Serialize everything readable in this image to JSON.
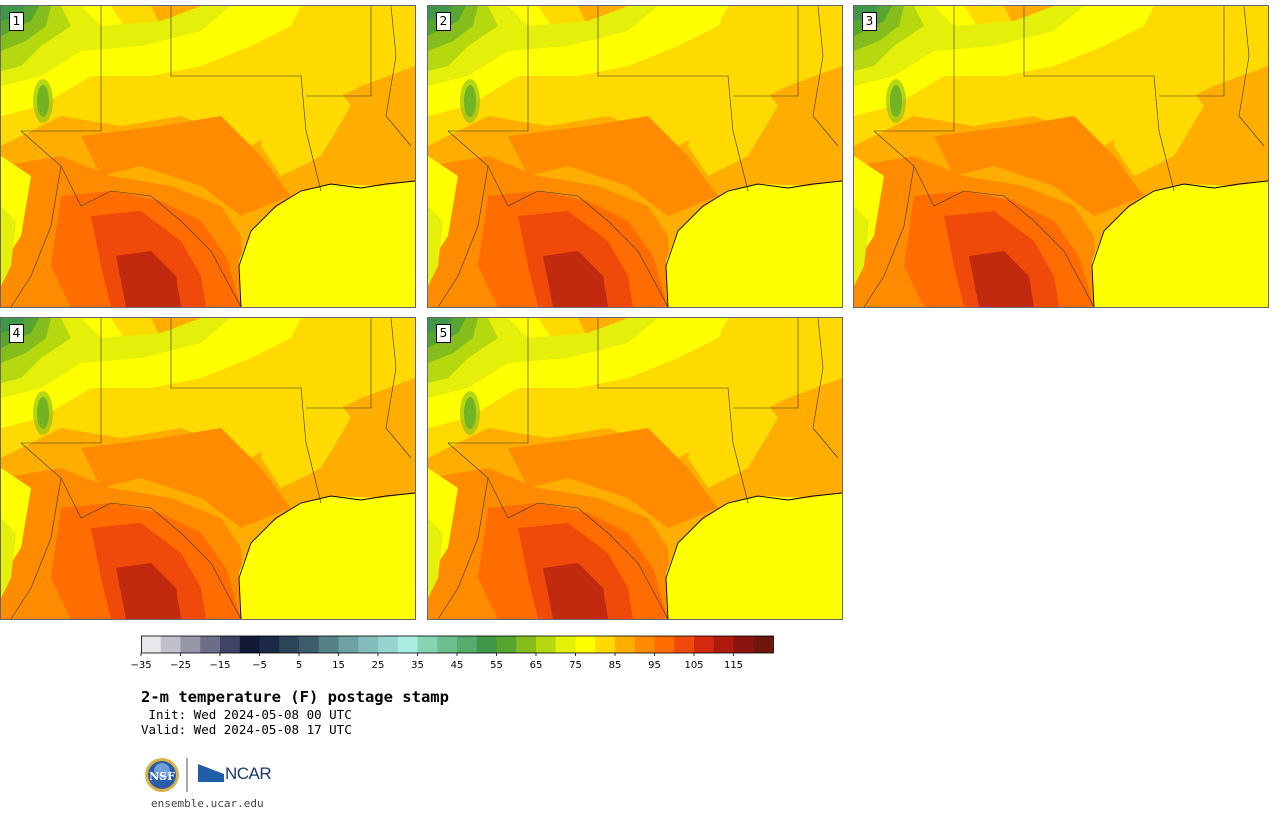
{
  "figure": {
    "title": "2-m temperature (F) postage stamp",
    "init": " Init: Wed 2024-05-08 00 UTC",
    "valid": "Valid: Wed 2024-05-08 17 UTC",
    "url": "ensemble.ucar.edu",
    "logos": {
      "nsf": "NSF",
      "ncar": "NCAR"
    }
  },
  "panels": [
    {
      "number": "1"
    },
    {
      "number": "2"
    },
    {
      "number": "3"
    },
    {
      "number": "4"
    },
    {
      "number": "5"
    }
  ],
  "colorbar": {
    "tick_labels": [
      "−35",
      "−25",
      "−15",
      "−5",
      "5",
      "15",
      "25",
      "35",
      "45",
      "55",
      "65",
      "75",
      "85",
      "95",
      "105",
      "115"
    ],
    "colors": [
      "#e8e8ec",
      "#bfc0cc",
      "#9597a8",
      "#6b6e86",
      "#3e4466",
      "#121a36",
      "#1b2a46",
      "#2b4458",
      "#3d5c6c",
      "#548287",
      "#6fa0a3",
      "#84bcbb",
      "#98d4cf",
      "#a8ece2",
      "#86d4b2",
      "#6cbf8c",
      "#55ac6e",
      "#3f9848",
      "#57a52f",
      "#84bd1c",
      "#b6d80f",
      "#e4ef0a",
      "#ffff00",
      "#ffda00",
      "#ffae00",
      "#ff8c00",
      "#ff6c00",
      "#f04a0a",
      "#d22a10",
      "#b01a0e",
      "#8c140e",
      "#6c160e"
    ]
  },
  "map_colors": {
    "gulf": "#ffff00",
    "t50": "#3f9848",
    "t55": "#57a52f",
    "t60": "#84bd1c",
    "t65": "#b6d80f",
    "t70": "#e4ef0a",
    "t75": "#ffff00",
    "t80": "#ffda00",
    "t85": "#ffae00",
    "t90": "#ff8c00",
    "t95": "#ff6c00",
    "t100": "#f04a0a",
    "t105": "#c22a10"
  }
}
